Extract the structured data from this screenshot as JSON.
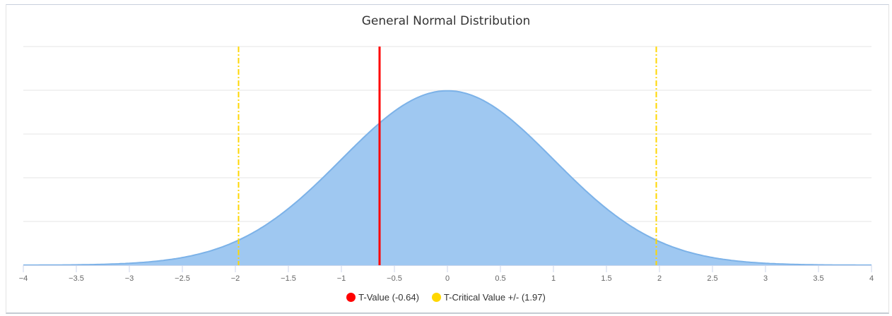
{
  "chart_data": {
    "type": "area",
    "title": "General Normal Distribution",
    "xlim": [
      -4,
      4
    ],
    "ylim": [
      0,
      0.5
    ],
    "x_ticks": [
      -4,
      -3.5,
      -3,
      -2.5,
      -2,
      -1.5,
      -1,
      -0.5,
      0,
      0.5,
      1,
      1.5,
      2,
      2.5,
      3,
      3.5,
      4
    ],
    "x_tick_labels": [
      "−4",
      "−3.5",
      "−3",
      "−2.5",
      "−2",
      "−1.5",
      "−1",
      "−0.5",
      "0",
      "0.5",
      "1",
      "1.5",
      "2",
      "2.5",
      "3",
      "3.5",
      "4"
    ],
    "y_grid": [
      0.1,
      0.2,
      0.3,
      0.4,
      0.5
    ],
    "grid": true,
    "legend_position": "bottom-center",
    "series": [
      {
        "type": "area",
        "distribution": "normal",
        "mean": 0,
        "sd": 1,
        "color": "#9fc8f1",
        "line_color": "#7cb2e8"
      }
    ],
    "markers": [
      {
        "name": "T-Value (-0.64)",
        "x": [
          -0.64
        ],
        "color": "#ff0000",
        "style": "solid"
      },
      {
        "name": "T-Critical Value +/- (1.97)",
        "x": [
          -1.97,
          1.97
        ],
        "color": "#ffd700",
        "style": "dashdot"
      }
    ]
  }
}
